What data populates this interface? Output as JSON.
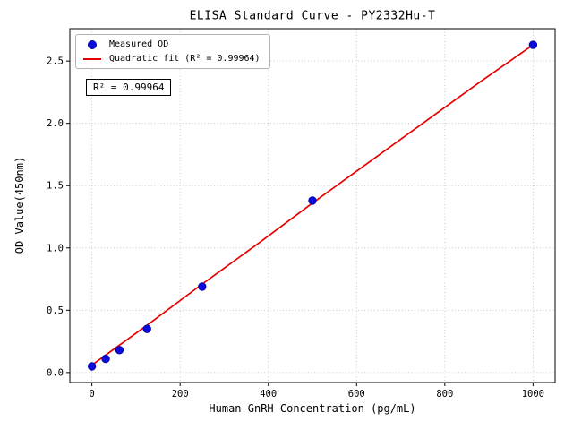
{
  "chart_data": {
    "type": "scatter",
    "title": "ELISA Standard Curve - PY2332Hu-T",
    "xlabel": "Human GnRH Concentration (pg/mL)",
    "ylabel": "OD Value(450nm)",
    "xlim": [
      -50,
      1050
    ],
    "ylim": [
      -0.08,
      2.76
    ],
    "x_ticks": [
      0,
      200,
      400,
      600,
      800,
      1000
    ],
    "x_tick_labels": [
      "0",
      "200",
      "400",
      "600",
      "800",
      "1000"
    ],
    "y_ticks": [
      0.0,
      0.5,
      1.0,
      1.5,
      2.0,
      2.5
    ],
    "y_tick_labels": [
      "0.0",
      "0.5",
      "1.0",
      "1.5",
      "2.0",
      "2.5"
    ],
    "grid": true,
    "legend_position": "upper left",
    "annotation": "R² = 0.99964",
    "r_squared": 0.99964,
    "fit_type": "quadratic",
    "series": [
      {
        "name": "Measured OD",
        "type": "scatter",
        "color": "#0b0bdd",
        "edge_color": "#0000a8",
        "x": [
          0,
          31.25,
          62.5,
          125,
          250,
          500,
          1000
        ],
        "y": [
          0.05,
          0.11,
          0.18,
          0.35,
          0.69,
          1.38,
          2.63
        ]
      },
      {
        "name": "Quadratic fit (R² = 0.99964)",
        "type": "line",
        "color": "#e60000",
        "x": [
          0,
          125,
          250,
          375,
          500,
          625,
          750,
          875,
          1000
        ],
        "y": [
          0.06,
          0.38,
          0.71,
          1.03,
          1.36,
          1.68,
          2.0,
          2.32,
          2.63
        ]
      }
    ]
  }
}
